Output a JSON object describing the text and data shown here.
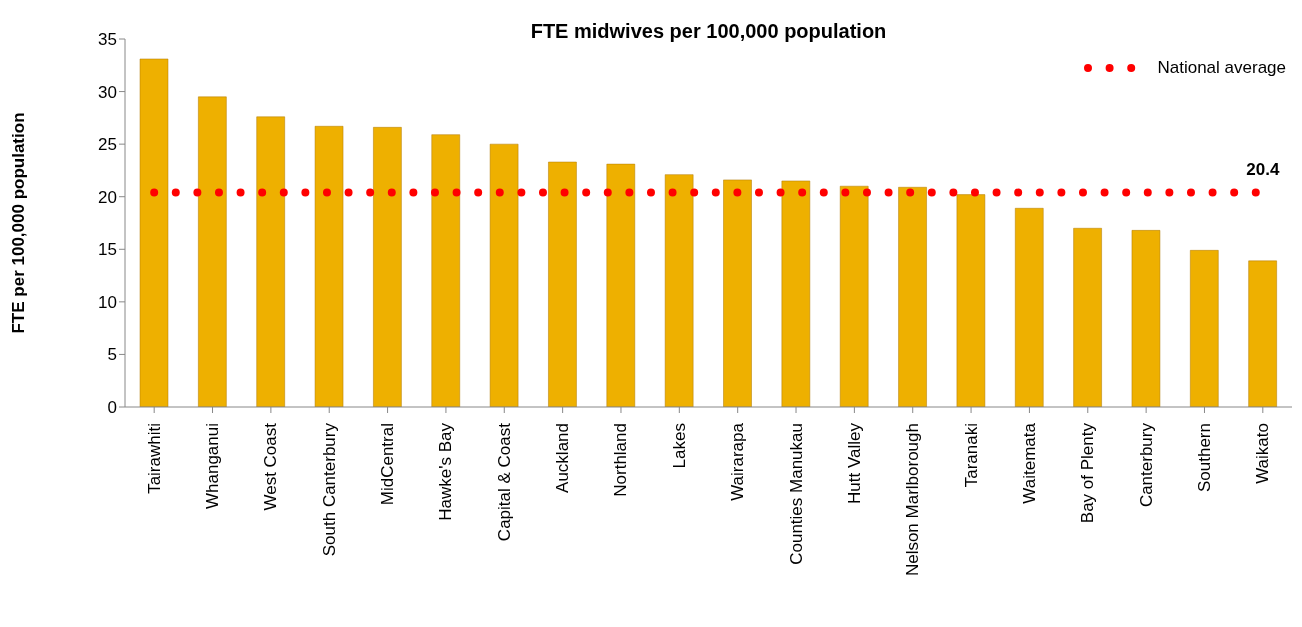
{
  "chart_data": {
    "type": "bar",
    "title": "FTE midwives per 100,000 population",
    "ylabel": "FTE per 100,000 population",
    "categories": [
      "Tairawhiti",
      "Whanganui",
      "West Coast",
      "South Canterbury",
      "MidCentral",
      "Hawke's Bay",
      "Capital & Coast",
      "Auckland",
      "Northland",
      "Lakes",
      "Wairarapa",
      "Counties Manukau",
      "Hutt Valley",
      "Nelson Marlborough",
      "Taranaki",
      "Waitemata",
      "Bay of Plenty",
      "Canterbury",
      "Southern",
      "Waikato"
    ],
    "series": [
      {
        "color": "#eeb000",
        "values": [
          33.1,
          29.5,
          27.6,
          26.7,
          26.6,
          25.9,
          25.0,
          23.3,
          23.1,
          22.1,
          21.6,
          21.5,
          21.0,
          20.9,
          20.2,
          18.9,
          17.0,
          16.8,
          14.9,
          13.9
        ]
      },
      {
        "type": "line",
        "name": "National average",
        "color": "#ff0000",
        "line_style": "dotted",
        "values": [
          20.4,
          20.4,
          20.4,
          20.4,
          20.4,
          20.4,
          20.4,
          20.4,
          20.4,
          20.4,
          20.4,
          20.4,
          20.4,
          20.4,
          20.4,
          20.4,
          20.4,
          20.4,
          20.4,
          20.4
        ]
      }
    ],
    "annotations": [
      {
        "text": "20.4",
        "x": "Waikato",
        "y": 20.4
      }
    ],
    "ylim": [
      0,
      35
    ],
    "yticks": [
      0,
      5,
      10,
      15,
      20,
      25,
      30,
      35
    ],
    "legend": "top right"
  }
}
